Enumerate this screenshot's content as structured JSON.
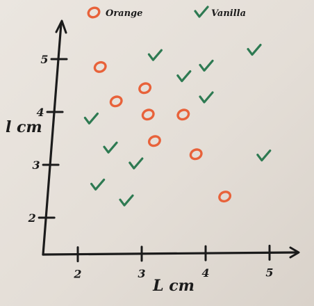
{
  "chart_data": {
    "type": "scatter",
    "title": "",
    "xlabel": "L cm",
    "ylabel": "l cm",
    "xlim": [
      1.5,
      5.5
    ],
    "ylim": [
      1.5,
      5.75
    ],
    "x_ticks": [
      "2",
      "3",
      "4",
      "5"
    ],
    "y_ticks": [
      "2",
      "3",
      "4",
      "5"
    ],
    "legend_position": "top",
    "colors": {
      "Orange": "#e8623a",
      "Vanilla": "#2e7a52",
      "ink": "#1b1b1b"
    },
    "series": [
      {
        "name": "Orange",
        "marker": "circle",
        "points": [
          [
            2.35,
            4.85
          ],
          [
            2.6,
            4.2
          ],
          [
            3.05,
            4.45
          ],
          [
            3.1,
            3.95
          ],
          [
            3.65,
            3.95
          ],
          [
            3.2,
            3.45
          ],
          [
            3.85,
            3.2
          ],
          [
            4.3,
            2.4
          ]
        ]
      },
      {
        "name": "Vanilla",
        "marker": "check",
        "points": [
          [
            3.2,
            5.05
          ],
          [
            3.65,
            4.65
          ],
          [
            4.0,
            4.85
          ],
          [
            4.75,
            5.15
          ],
          [
            4.0,
            4.25
          ],
          [
            2.2,
            3.85
          ],
          [
            2.5,
            3.3
          ],
          [
            2.9,
            3.0
          ],
          [
            2.3,
            2.6
          ],
          [
            2.75,
            2.3
          ],
          [
            4.9,
            3.15
          ]
        ]
      }
    ]
  }
}
